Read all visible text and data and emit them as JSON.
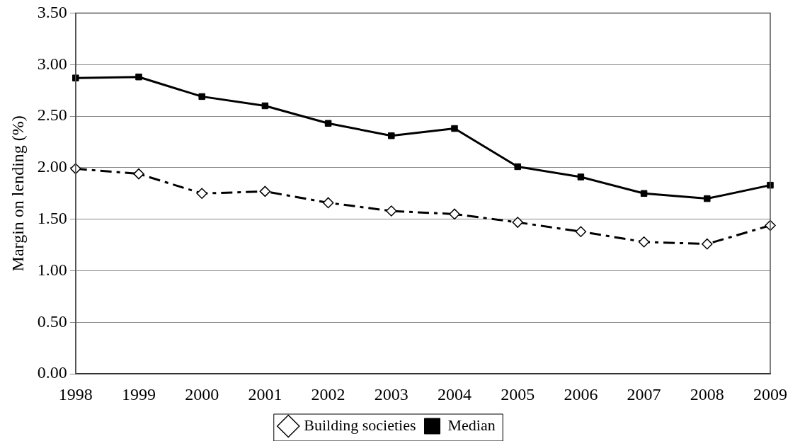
{
  "chart_data": {
    "type": "line",
    "ylabel": "Margin on lending (%)",
    "categories": [
      "1998",
      "1999",
      "2000",
      "2001",
      "2002",
      "2003",
      "2004",
      "2005",
      "2006",
      "2007",
      "2008",
      "2009"
    ],
    "series": [
      {
        "name": "Building societies",
        "color": "#000000",
        "marker": "diamond",
        "line_style": "dashed",
        "values": [
          1.99,
          1.94,
          1.75,
          1.77,
          1.66,
          1.58,
          1.55,
          1.47,
          1.38,
          1.28,
          1.26,
          1.44
        ]
      },
      {
        "name": "Median",
        "color": "#000000",
        "marker": "square",
        "line_style": "solid",
        "values": [
          2.87,
          2.88,
          2.69,
          2.6,
          2.43,
          2.31,
          2.38,
          2.01,
          1.91,
          1.75,
          1.7,
          1.83
        ]
      }
    ],
    "ylim": [
      0,
      3.5
    ],
    "yticks": [
      {
        "value": 0,
        "label": "0.00"
      },
      {
        "value": 0.5,
        "label": "0.50"
      },
      {
        "value": 1,
        "label": "1.00"
      },
      {
        "value": 1.5,
        "label": "1.50"
      },
      {
        "value": 2,
        "label": "2.00"
      },
      {
        "value": 2.5,
        "label": "2.50"
      },
      {
        "value": 3,
        "label": "3.00"
      },
      {
        "value": 3.5,
        "label": "3.50"
      }
    ],
    "grid": "y",
    "legend": "bottom"
  }
}
